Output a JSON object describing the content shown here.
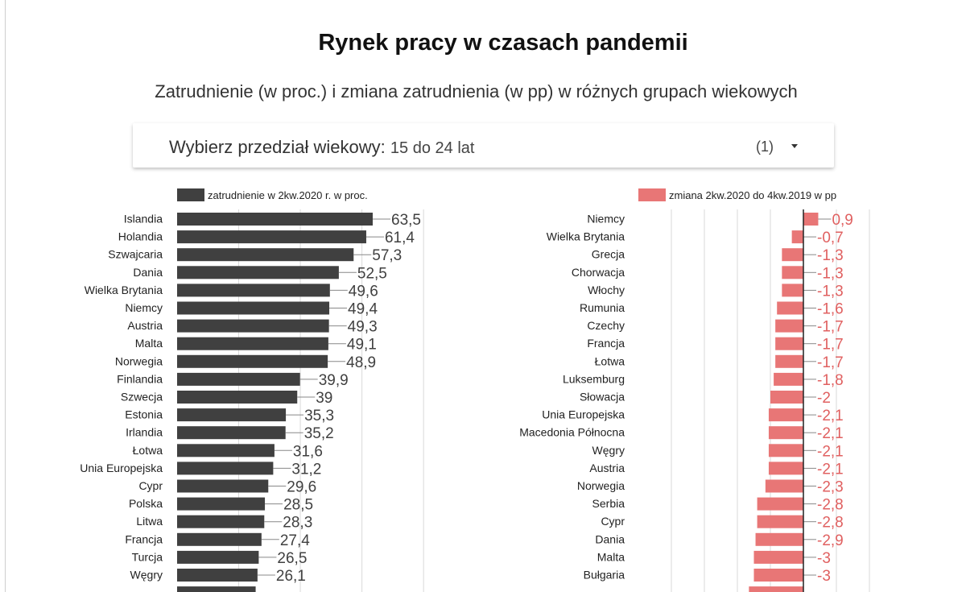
{
  "page": {
    "title": "Rynek pracy w czasach pandemii",
    "subtitle": "Zatrudnienie (w proc.)  i zmiana zatrudnienia (w pp) w różnych grupach wiekowych"
  },
  "selector": {
    "label": "Wybierz przedział wiekowy:",
    "value": "15 do 24 lat",
    "count": "(1)"
  },
  "colors": {
    "left_bar": "#404040",
    "right_bar": "#e87676",
    "left_label": "#404040",
    "right_label": "#e06060",
    "grid": "#d9d9d9",
    "zero_line": "#222222"
  },
  "chart_data": [
    {
      "type": "bar",
      "orientation": "horizontal",
      "legend": "zatrudnienie w 2kw.2020 r. w proc.",
      "categories": [
        "Islandia",
        "Holandia",
        "Szwajcaria",
        "Dania",
        "Wielka Brytania",
        "Niemcy",
        "Austria",
        "Malta",
        "Norwegia",
        "Finlandia",
        "Szwecja",
        "Estonia",
        "Irlandia",
        "Łotwa",
        "Unia Europejska",
        "Cypr",
        "Polska",
        "Litwa",
        "Francja",
        "Turcja",
        "Węgry"
      ],
      "values": [
        63.5,
        61.4,
        57.3,
        52.5,
        49.6,
        49.4,
        49.3,
        49.1,
        48.9,
        39.9,
        39,
        35.3,
        35.2,
        31.6,
        31.2,
        29.6,
        28.5,
        28.3,
        27.4,
        26.5,
        26.1
      ],
      "value_labels": [
        "63,5",
        "61,4",
        "57,3",
        "52,5",
        "49,6",
        "49,4",
        "49,3",
        "49,1",
        "48,9",
        "39,9",
        "39",
        "35,3",
        "35,2",
        "31,6",
        "31,2",
        "29,6",
        "28,5",
        "28,3",
        "27,4",
        "26,5",
        "26,1"
      ],
      "xlim": [
        0,
        80
      ],
      "grid": true
    },
    {
      "type": "bar",
      "orientation": "horizontal",
      "legend": "zmiana 2kw.2020 do 4kw.2019 w pp",
      "categories": [
        "Niemcy",
        "Wielka Brytania",
        "Grecja",
        "Chorwacja",
        "Włochy",
        "Rumunia",
        "Czechy",
        "Francja",
        "Łotwa",
        "Luksemburg",
        "Słowacja",
        "Unia Europejska",
        "Macedonia Północna",
        "Węgry",
        "Austria",
        "Norwegia",
        "Serbia",
        "Cypr",
        "Dania",
        "Malta",
        "Bułgaria"
      ],
      "values": [
        0.9,
        -0.7,
        -1.3,
        -1.3,
        -1.3,
        -1.6,
        -1.7,
        -1.7,
        -1.7,
        -1.8,
        -2,
        -2.1,
        -2.1,
        -2.1,
        -2.1,
        -2.3,
        -2.8,
        -2.8,
        -2.9,
        -3,
        -3
      ],
      "value_labels": [
        "0,9",
        "0,7",
        "1,3",
        "1,3",
        "1,3",
        "1,6",
        "1,7",
        "1,7",
        "1,7",
        "1,8",
        "2",
        "2,1",
        "2,1",
        "2,1",
        "2,1",
        "2,3",
        "2,8",
        "2,8",
        "2,9",
        "3",
        "3"
      ],
      "xlim": [
        -8,
        4
      ],
      "grid": true
    }
  ]
}
